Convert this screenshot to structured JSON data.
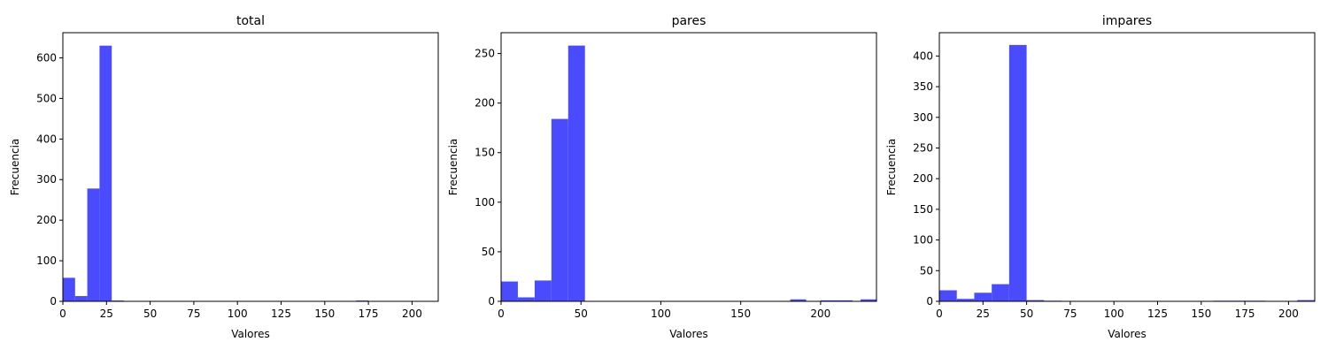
{
  "charts": [
    {
      "type": "bar",
      "title": "total",
      "xlabel": "Valores",
      "ylabel": "Frecuencia",
      "bar_color": "#4b4bfe",
      "xlim": [
        0,
        215
      ],
      "ylim": [
        0,
        662
      ],
      "xticks": [
        0,
        25,
        50,
        75,
        100,
        125,
        150,
        175,
        200
      ],
      "yticks": [
        0,
        100,
        200,
        300,
        400,
        500,
        600
      ],
      "bins": [
        {
          "x0": 0,
          "x1": 7,
          "count": 58
        },
        {
          "x0": 7,
          "x1": 14,
          "count": 13
        },
        {
          "x0": 14,
          "x1": 21,
          "count": 278
        },
        {
          "x0": 21,
          "x1": 28,
          "count": 630
        },
        {
          "x0": 28,
          "x1": 35,
          "count": 2
        },
        {
          "x0": 35,
          "x1": 42,
          "count": 1
        },
        {
          "x0": 161,
          "x1": 168,
          "count": 1
        },
        {
          "x0": 168,
          "x1": 175,
          "count": 2
        },
        {
          "x0": 175,
          "x1": 182,
          "count": 1
        },
        {
          "x0": 189,
          "x1": 196,
          "count": 1
        },
        {
          "x0": 203,
          "x1": 210,
          "count": 1
        },
        {
          "x0": 210,
          "x1": 215,
          "count": 1
        }
      ]
    },
    {
      "type": "bar",
      "title": "pares",
      "xlabel": "Valores",
      "ylabel": "Frecuencia",
      "bar_color": "#4b4bfe",
      "xlim": [
        0,
        235
      ],
      "ylim": [
        0,
        271
      ],
      "xticks": [
        0,
        50,
        100,
        150,
        200
      ],
      "yticks": [
        0,
        50,
        100,
        150,
        200,
        250
      ],
      "bins": [
        {
          "x0": 0,
          "x1": 10.5,
          "count": 20
        },
        {
          "x0": 10.5,
          "x1": 21,
          "count": 4
        },
        {
          "x0": 21,
          "x1": 31.5,
          "count": 21
        },
        {
          "x0": 31.5,
          "x1": 42,
          "count": 184
        },
        {
          "x0": 42,
          "x1": 52.5,
          "count": 258
        },
        {
          "x0": 181,
          "x1": 191,
          "count": 2
        },
        {
          "x0": 200,
          "x1": 210,
          "count": 1
        },
        {
          "x0": 210,
          "x1": 220,
          "count": 1
        },
        {
          "x0": 225,
          "x1": 235,
          "count": 2
        }
      ]
    },
    {
      "type": "bar",
      "title": "impares",
      "xlabel": "Valores",
      "ylabel": "Frecuencia",
      "bar_color": "#4b4bfe",
      "xlim": [
        0,
        215
      ],
      "ylim": [
        0,
        438
      ],
      "xticks": [
        0,
        25,
        50,
        75,
        100,
        125,
        150,
        175,
        200
      ],
      "yticks": [
        0,
        50,
        100,
        150,
        200,
        250,
        300,
        350,
        400
      ],
      "bins": [
        {
          "x0": 0,
          "x1": 10,
          "count": 18
        },
        {
          "x0": 10,
          "x1": 20,
          "count": 4
        },
        {
          "x0": 20,
          "x1": 30,
          "count": 14
        },
        {
          "x0": 30,
          "x1": 40,
          "count": 28
        },
        {
          "x0": 40,
          "x1": 50,
          "count": 418
        },
        {
          "x0": 50,
          "x1": 60,
          "count": 2
        },
        {
          "x0": 60,
          "x1": 70,
          "count": 1
        },
        {
          "x0": 157,
          "x1": 167,
          "count": 1
        },
        {
          "x0": 167,
          "x1": 177,
          "count": 1
        },
        {
          "x0": 177,
          "x1": 187,
          "count": 1
        },
        {
          "x0": 205,
          "x1": 215,
          "count": 2
        }
      ]
    }
  ]
}
